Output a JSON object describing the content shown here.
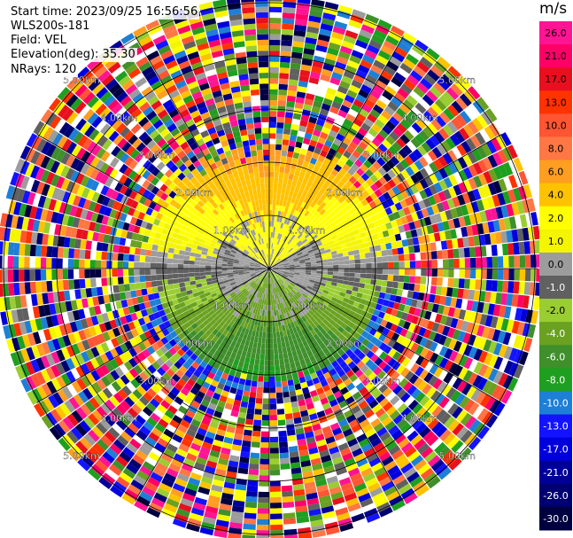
{
  "info": {
    "start_time": "Start time: 2023/09/25 16:56:56",
    "instrument": "WLS200s-181",
    "field": "Field: VEL",
    "elevation": "Elevation(deg): 35.30",
    "nrays": "NRays: 120"
  },
  "colorbar": {
    "unit": "m/s",
    "ticks": [
      "26.0",
      "21.0",
      "17.0",
      "13.0",
      "10.0",
      "8.0",
      "6.0",
      "4.0",
      "2.0",
      "1.0",
      "0.0",
      "-1.0",
      "-2.0",
      "-4.0",
      "-6.0",
      "-8.0",
      "-10.0",
      "-13.0",
      "-17.0",
      "-21.0",
      "-26.0",
      "-30.0"
    ],
    "colors": [
      "#ff1493",
      "#ff0066",
      "#e8101e",
      "#ff3300",
      "#ff5533",
      "#ff7744",
      "#ff9e20",
      "#ffc200",
      "#ffff00",
      "#f4f500",
      "#9c9c9c",
      "#606060",
      "#9acd32",
      "#6aa121",
      "#3f8f2b",
      "#1f9f1f",
      "#1e7fd6",
      "#1313ff",
      "#0000dd",
      "#000098",
      "#000070",
      "#000040"
    ]
  },
  "chart_data": {
    "type": "heatmap",
    "projection": "polar PPI",
    "field": "VEL",
    "nrays": 120,
    "range_ring_labels": [
      "1.00km",
      "2.00km",
      "3.00km",
      "4.00km",
      "5.00km"
    ],
    "value_range": [
      -30.0,
      26.0
    ],
    "inner_pattern": [
      {
        "sector": "north",
        "range_km": [
          0,
          1.5
        ],
        "value_ms": 2.0
      },
      {
        "sector": "north",
        "range_km": [
          1.5,
          2.5
        ],
        "value_ms": 6.0
      },
      {
        "sector": "center",
        "range_km": [
          0,
          1.0
        ],
        "value_ms": 0.0
      },
      {
        "sector": "south",
        "range_km": [
          0,
          1.5
        ],
        "value_ms": -2.0
      },
      {
        "sector": "south",
        "range_km": [
          1.5,
          2.5
        ],
        "value_ms": -6.0
      },
      {
        "sector": "south-edge",
        "range_km": [
          2.3,
          2.6
        ],
        "value_ms": -10.0
      }
    ],
    "outer_pattern": "noise"
  }
}
